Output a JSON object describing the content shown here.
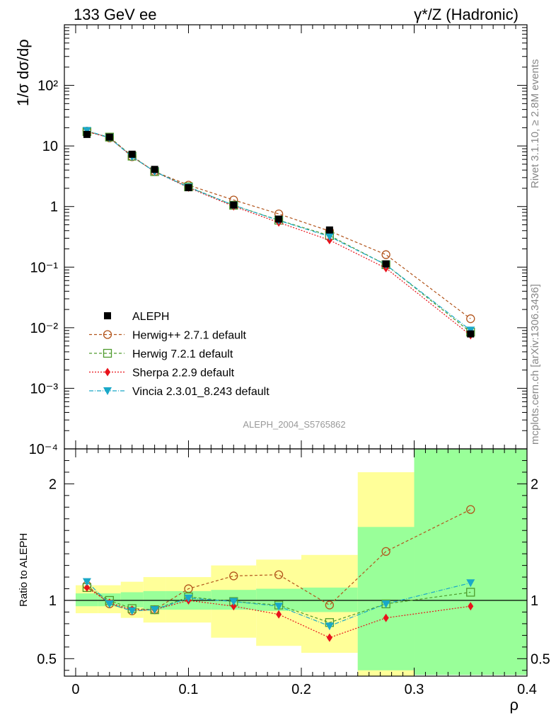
{
  "header": {
    "left": "133 GeV ee",
    "right": "γ*/Z (Hadronic)"
  },
  "side": {
    "rivet": "Rivet 3.1.10, ≥ 2.8M events",
    "mcplots": "mcplots.cern.ch [arXiv:1306.3436]"
  },
  "chart_data": {
    "type": "scatter",
    "analysis_label": "ALEPH_2004_S5765862",
    "xlabel": "ρ",
    "ylabel_main": "1/σ dσ/dρ",
    "ylabel_ratio": "Ratio to ALEPH",
    "xlim": [
      -0.01,
      0.4
    ],
    "ylim_main": [
      0.0001,
      1000
    ],
    "y_scale_main": "log",
    "ylim_ratio": [
      0.35,
      2.3
    ],
    "x_ticks": [
      "0",
      "0.1",
      "0.2",
      "0.3",
      "0.4"
    ],
    "y_ticks_main": [
      "10⁻⁴",
      "10⁻³",
      "10⁻²",
      "10⁻¹",
      "1",
      "10",
      "10²"
    ],
    "y_ticks_ratio": [
      "0.5",
      "1",
      "2"
    ],
    "legend_placement": "lower-left",
    "x": [
      0.01,
      0.03,
      0.05,
      0.07,
      0.1,
      0.14,
      0.18,
      0.225,
      0.275,
      0.35
    ],
    "bin_edges": [
      0.0,
      0.02,
      0.04,
      0.06,
      0.08,
      0.12,
      0.16,
      0.2,
      0.25,
      0.3,
      0.4
    ],
    "data": {
      "name": "ALEPH",
      "values": [
        15.5,
        14.0,
        7.3,
        4.1,
        2.05,
        1.06,
        0.62,
        0.41,
        0.113,
        0.0079
      ]
    },
    "band_inner": {
      "lo": [
        0.95,
        0.95,
        0.94,
        0.92,
        0.92,
        0.92,
        0.91,
        0.9,
        0.36,
        0.36
      ],
      "hi": [
        1.06,
        1.06,
        1.07,
        1.08,
        1.08,
        1.09,
        1.1,
        1.11,
        1.63,
        2.3
      ]
    },
    "band_outer": {
      "lo": [
        0.89,
        0.89,
        0.85,
        0.81,
        0.81,
        0.68,
        0.61,
        0.55,
        0.4,
        2.3
      ],
      "hi": [
        1.13,
        1.13,
        1.16,
        1.2,
        1.2,
        1.3,
        1.35,
        1.39,
        2.1,
        2.3
      ]
    },
    "series": [
      {
        "name": "Herwig++ 2.7.1 default",
        "color": "#b2541b",
        "marker": "circle-open",
        "dash": "4,3",
        "ratio": [
          1.13,
          0.97,
          0.91,
          0.92,
          1.1,
          1.21,
          1.22,
          0.96,
          1.42,
          1.78
        ]
      },
      {
        "name": "Herwig 7.2.1 default",
        "color": "#4e9a2c",
        "marker": "square-open",
        "dash": "4,3",
        "ratio": [
          1.11,
          1.0,
          0.93,
          0.92,
          1.03,
          0.99,
          0.96,
          0.81,
          0.97,
          1.07
        ]
      },
      {
        "name": "Sherpa 2.2.9 default",
        "color": "#e8121a",
        "marker": "diamond",
        "dash": "2,2",
        "ratio": [
          1.11,
          0.98,
          0.92,
          0.92,
          1.0,
          0.95,
          0.88,
          0.68,
          0.85,
          0.95
        ]
      },
      {
        "name": "Vincia 2.3.01_8.243 default",
        "color": "#1aa8c8",
        "marker": "triangle-down",
        "dash": "6,2,1,2",
        "ratio": [
          1.16,
          0.97,
          0.91,
          0.92,
          1.02,
          0.99,
          0.95,
          0.78,
          0.97,
          1.15
        ]
      }
    ]
  }
}
